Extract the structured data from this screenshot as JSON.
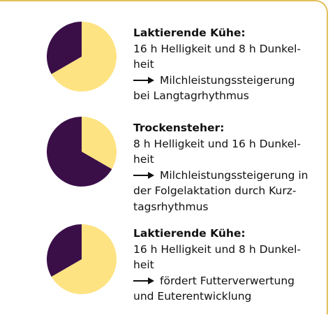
{
  "colors": {
    "frame": "#E3BE5A",
    "pie_light": "#FEE382",
    "pie_dark": "#3A0F48",
    "text": "#111111"
  },
  "icons": {
    "arrow": "right-arrow-icon"
  },
  "panels": [
    {
      "title": "Laktierende Kühe:",
      "light_fraction": 0.6667,
      "dark_fraction": 0.3333,
      "lines": [
        "16 h Helligkeit und 8 h Dunkel-",
        "heit"
      ],
      "arrow_text": "Milchleistungssteigerung",
      "after_lines": [
        "bei Langtagrhythmus"
      ]
    },
    {
      "title": "Trockensteher:",
      "light_fraction": 0.3333,
      "dark_fraction": 0.6667,
      "lines": [
        "8 h Helligkeit und 16 h Dunkel-",
        "heit"
      ],
      "arrow_text": "Milchleistungssteigerung in",
      "after_lines": [
        "der Folgelaktation durch Kurz-",
        "tagsrhythmus"
      ]
    },
    {
      "title": "Laktierende Kühe:",
      "light_fraction": 0.6667,
      "dark_fraction": 0.3333,
      "lines": [
        "16 h Helligkeit und 8 h Dunkel-",
        "heit"
      ],
      "arrow_text": "fördert Futterverwertung",
      "after_lines": [
        "und Euterentwicklung"
      ]
    }
  ]
}
